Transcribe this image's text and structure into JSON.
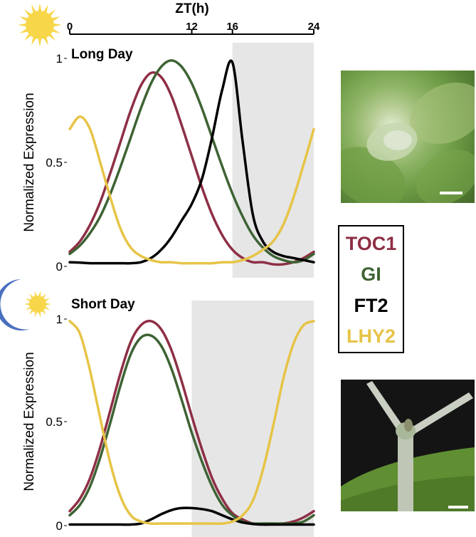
{
  "colors": {
    "TOC1": "#8e2f45",
    "GI": "#3e6334",
    "FT2": "#000000",
    "LHY2": "#e6c447",
    "night_shade": "#e6e6e6",
    "sun": "#f7d64a",
    "moon": "#4a6fbf"
  },
  "legend": {
    "labels": [
      "TOC1",
      "GI",
      "FT2",
      "LHY2"
    ]
  },
  "top_axis": {
    "label": "ZT(h)",
    "ticks": [
      "0",
      "12",
      "16",
      "24"
    ]
  },
  "chart_data": [
    {
      "type": "line",
      "title": "Long Day",
      "xlabel": "ZT(h)",
      "ylabel": "Normalized Expression",
      "xlim": [
        0,
        24
      ],
      "ylim": [
        0,
        1
      ],
      "y_tick_labels": [
        "0",
        "0.5",
        "1"
      ],
      "night_start": 16,
      "night_end": 24,
      "grid": false,
      "series": [
        {
          "name": "TOC1",
          "x": [
            0,
            1,
            2,
            3,
            4,
            5,
            6,
            7,
            8,
            9,
            10,
            11,
            12,
            13,
            14,
            15,
            16,
            17,
            18,
            19,
            20,
            21,
            22,
            23,
            24
          ],
          "y": [
            0.07,
            0.12,
            0.2,
            0.31,
            0.45,
            0.6,
            0.75,
            0.87,
            0.93,
            0.91,
            0.82,
            0.68,
            0.53,
            0.38,
            0.25,
            0.15,
            0.08,
            0.04,
            0.02,
            0.02,
            0.01,
            0.01,
            0.02,
            0.04,
            0.07
          ]
        },
        {
          "name": "GI",
          "x": [
            0,
            1,
            2,
            3,
            4,
            5,
            6,
            7,
            8,
            9,
            10,
            11,
            12,
            13,
            14,
            15,
            16,
            17,
            18,
            19,
            20,
            21,
            22,
            23,
            24
          ],
          "y": [
            0.06,
            0.1,
            0.16,
            0.24,
            0.35,
            0.48,
            0.62,
            0.76,
            0.88,
            0.96,
            0.99,
            0.96,
            0.88,
            0.76,
            0.62,
            0.48,
            0.35,
            0.24,
            0.15,
            0.09,
            0.05,
            0.03,
            0.02,
            0.03,
            0.06
          ]
        },
        {
          "name": "FT2",
          "x": [
            0,
            1,
            2,
            3,
            4,
            5,
            6,
            7,
            8,
            9,
            10,
            11,
            12,
            13,
            14,
            15,
            16,
            17,
            18,
            19,
            20,
            21,
            22,
            23,
            24
          ],
          "y": [
            0.02,
            0.018,
            0.015,
            0.015,
            0.015,
            0.015,
            0.015,
            0.02,
            0.04,
            0.08,
            0.14,
            0.22,
            0.3,
            0.42,
            0.62,
            0.85,
            0.98,
            0.6,
            0.25,
            0.12,
            0.07,
            0.05,
            0.04,
            0.03,
            0.02
          ]
        },
        {
          "name": "LHY2",
          "x": [
            0,
            1,
            2,
            3,
            4,
            5,
            6,
            7,
            8,
            9,
            10,
            11,
            12,
            13,
            14,
            15,
            16,
            17,
            18,
            19,
            20,
            21,
            22,
            23,
            24
          ],
          "y": [
            0.66,
            0.72,
            0.66,
            0.5,
            0.33,
            0.18,
            0.09,
            0.05,
            0.03,
            0.02,
            0.02,
            0.015,
            0.015,
            0.015,
            0.015,
            0.02,
            0.02,
            0.03,
            0.05,
            0.08,
            0.12,
            0.2,
            0.33,
            0.49,
            0.66
          ]
        }
      ]
    },
    {
      "type": "line",
      "title": "Short Day",
      "xlabel": "ZT(h)",
      "ylabel": "Normalized Expression",
      "xlim": [
        0,
        24
      ],
      "ylim": [
        0,
        1
      ],
      "y_tick_labels": [
        "0",
        "0.5",
        "1"
      ],
      "night_start": 12,
      "night_end": 24,
      "grid": false,
      "series": [
        {
          "name": "TOC1",
          "x": [
            0,
            1,
            2,
            3,
            4,
            5,
            6,
            7,
            8,
            9,
            10,
            11,
            12,
            13,
            14,
            15,
            16,
            17,
            18,
            19,
            20,
            21,
            22,
            23,
            24
          ],
          "y": [
            0.07,
            0.13,
            0.23,
            0.38,
            0.56,
            0.74,
            0.89,
            0.97,
            0.99,
            0.95,
            0.85,
            0.7,
            0.53,
            0.37,
            0.23,
            0.13,
            0.06,
            0.03,
            0.01,
            0.01,
            0.01,
            0.01,
            0.02,
            0.04,
            0.07
          ]
        },
        {
          "name": "GI",
          "x": [
            0,
            1,
            2,
            3,
            4,
            5,
            6,
            7,
            8,
            9,
            10,
            11,
            12,
            13,
            14,
            15,
            16,
            17,
            18,
            19,
            20,
            21,
            22,
            23,
            24
          ],
          "y": [
            0.05,
            0.1,
            0.19,
            0.33,
            0.5,
            0.68,
            0.83,
            0.91,
            0.92,
            0.87,
            0.76,
            0.61,
            0.45,
            0.31,
            0.19,
            0.1,
            0.05,
            0.02,
            0.01,
            0.01,
            0.01,
            0.01,
            0.01,
            0.02,
            0.05
          ]
        },
        {
          "name": "FT2",
          "x": [
            0,
            1,
            2,
            3,
            4,
            5,
            6,
            7,
            8,
            9,
            10,
            11,
            12,
            13,
            14,
            15,
            16,
            17,
            18,
            19,
            20,
            21,
            22,
            23,
            24
          ],
          "y": [
            0.005,
            0.005,
            0.005,
            0.005,
            0.005,
            0.005,
            0.005,
            0.01,
            0.03,
            0.055,
            0.075,
            0.085,
            0.085,
            0.08,
            0.07,
            0.05,
            0.03,
            0.015,
            0.008,
            0.005,
            0.005,
            0.005,
            0.005,
            0.005,
            0.005
          ]
        },
        {
          "name": "LHY2",
          "x": [
            0,
            1,
            2,
            3,
            4,
            5,
            6,
            7,
            8,
            9,
            10,
            11,
            12,
            13,
            14,
            15,
            16,
            17,
            18,
            19,
            20,
            21,
            22,
            23,
            24
          ],
          "y": [
            0.99,
            0.93,
            0.75,
            0.52,
            0.3,
            0.14,
            0.05,
            0.02,
            0.01,
            0.01,
            0.01,
            0.01,
            0.01,
            0.01,
            0.01,
            0.01,
            0.02,
            0.05,
            0.12,
            0.27,
            0.48,
            0.71,
            0.88,
            0.97,
            0.99
          ]
        }
      ]
    }
  ]
}
